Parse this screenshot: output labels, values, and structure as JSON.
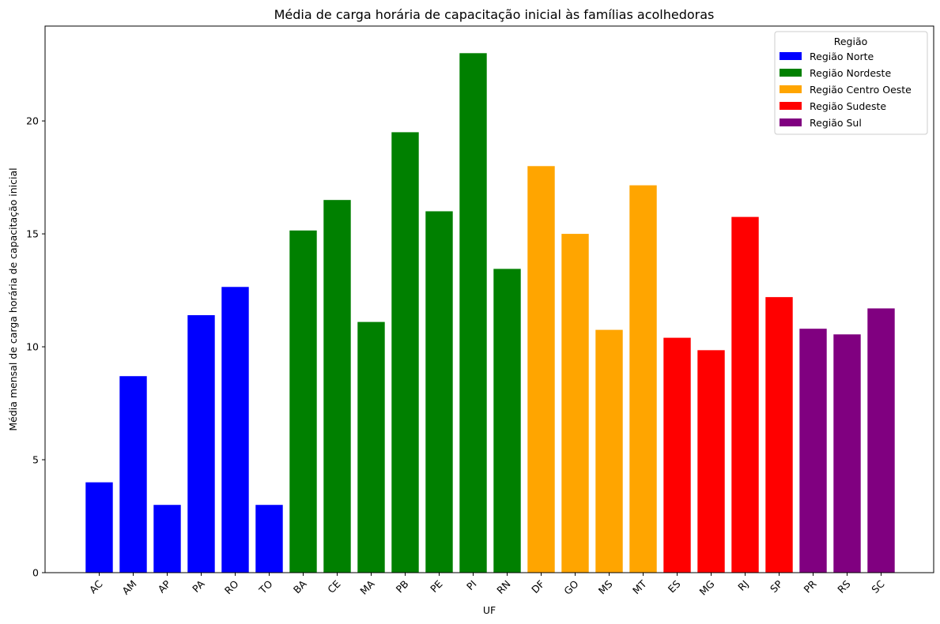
{
  "chart_data": {
    "type": "bar",
    "title": "Média de carga horária de capacitação inicial às famílias acolhedoras",
    "xlabel": "UF",
    "ylabel": "Média mensal de carga horária de capacitação inicial",
    "ylim": [
      0,
      24.2
    ],
    "yticks": [
      0,
      5,
      10,
      15,
      20
    ],
    "grid": false,
    "legend": {
      "title": "Região",
      "placement": "top-right",
      "entries": [
        {
          "label": "Região Norte",
          "color": "#0000ff"
        },
        {
          "label": "Região Nordeste",
          "color": "#008000"
        },
        {
          "label": "Região Centro Oeste",
          "color": "#ffa500"
        },
        {
          "label": "Região Sudeste",
          "color": "#ff0000"
        },
        {
          "label": "Região Sul",
          "color": "#800080"
        }
      ]
    },
    "categories": [
      "AC",
      "AM",
      "AP",
      "PA",
      "RO",
      "TO",
      "BA",
      "CE",
      "MA",
      "PB",
      "PE",
      "PI",
      "RN",
      "DF",
      "GO",
      "MS",
      "MT",
      "ES",
      "MG",
      "RJ",
      "SP",
      "PR",
      "RS",
      "SC"
    ],
    "values": [
      4.0,
      8.7,
      3.0,
      11.4,
      12.65,
      3.0,
      15.15,
      16.5,
      11.1,
      19.5,
      16.0,
      23.0,
      13.45,
      18.0,
      15.0,
      10.75,
      17.15,
      10.4,
      9.85,
      15.75,
      12.2,
      10.8,
      10.55,
      11.7
    ],
    "bar_regions": [
      0,
      0,
      0,
      0,
      0,
      0,
      1,
      1,
      1,
      1,
      1,
      1,
      1,
      2,
      2,
      2,
      2,
      3,
      3,
      3,
      3,
      4,
      4,
      4
    ]
  }
}
